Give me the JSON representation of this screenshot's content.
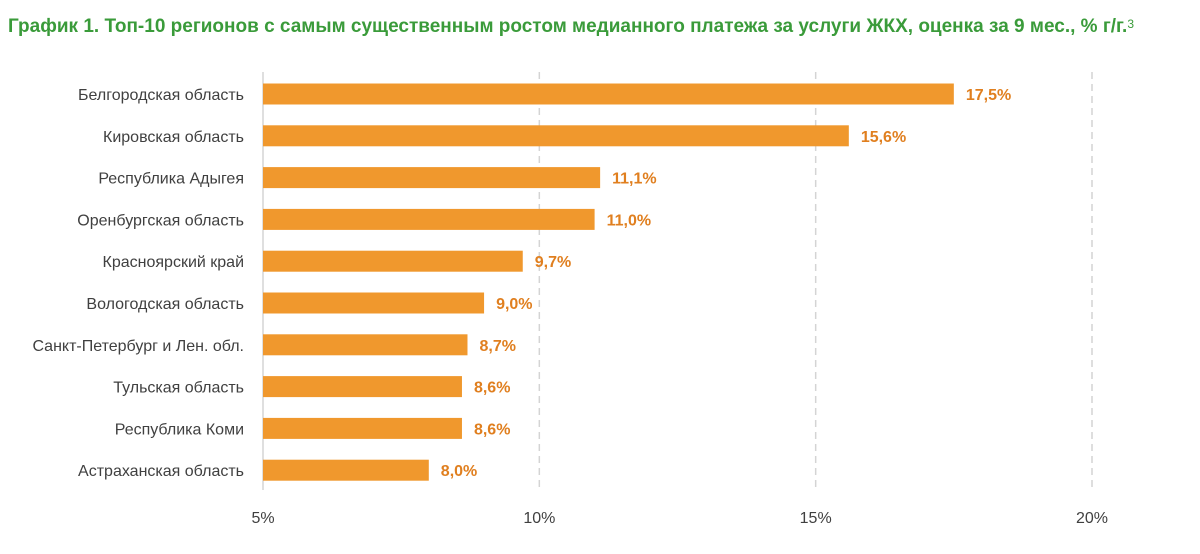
{
  "title": {
    "text": "График 1. Топ-10 регионов с самым существенным ростом медианного платежа за услуги ЖКХ, оценка за 9 мес., % г/г.",
    "footnote": "3"
  },
  "colors": {
    "bar": "#f0982d",
    "value_label": "#e07f1f",
    "title": "#3a9b3a",
    "grid": "#d4d4d4"
  },
  "chart_data": {
    "type": "bar",
    "orientation": "horizontal",
    "title": "График 1. Топ-10 регионов с самым существенным ростом медианного платежа за услуги ЖКХ, оценка за 9 мес., % г/г.",
    "categories": [
      "Белгородская область",
      "Кировская область",
      "Республика Адыгея",
      "Оренбургская область",
      "Красноярский край",
      "Вологодская область",
      "Санкт-Петербург и Лен. обл.",
      "Тульская область",
      "Республика Коми",
      "Астраханская область"
    ],
    "values": [
      17.5,
      15.6,
      11.1,
      11.0,
      9.7,
      9.0,
      8.7,
      8.6,
      8.6,
      8.0
    ],
    "value_labels": [
      "17,5%",
      "15,6%",
      "11,1%",
      "11,0%",
      "9,7%",
      "9,0%",
      "8,7%",
      "8,6%",
      "8,6%",
      "8,0%"
    ],
    "xlim": [
      5,
      20
    ],
    "xticks": [
      5,
      10,
      15,
      20
    ],
    "xtick_labels": [
      "5%",
      "10%",
      "15%",
      "20%"
    ],
    "xlabel": "",
    "ylabel": "",
    "grid": "vertical dashed",
    "legend": "none"
  }
}
